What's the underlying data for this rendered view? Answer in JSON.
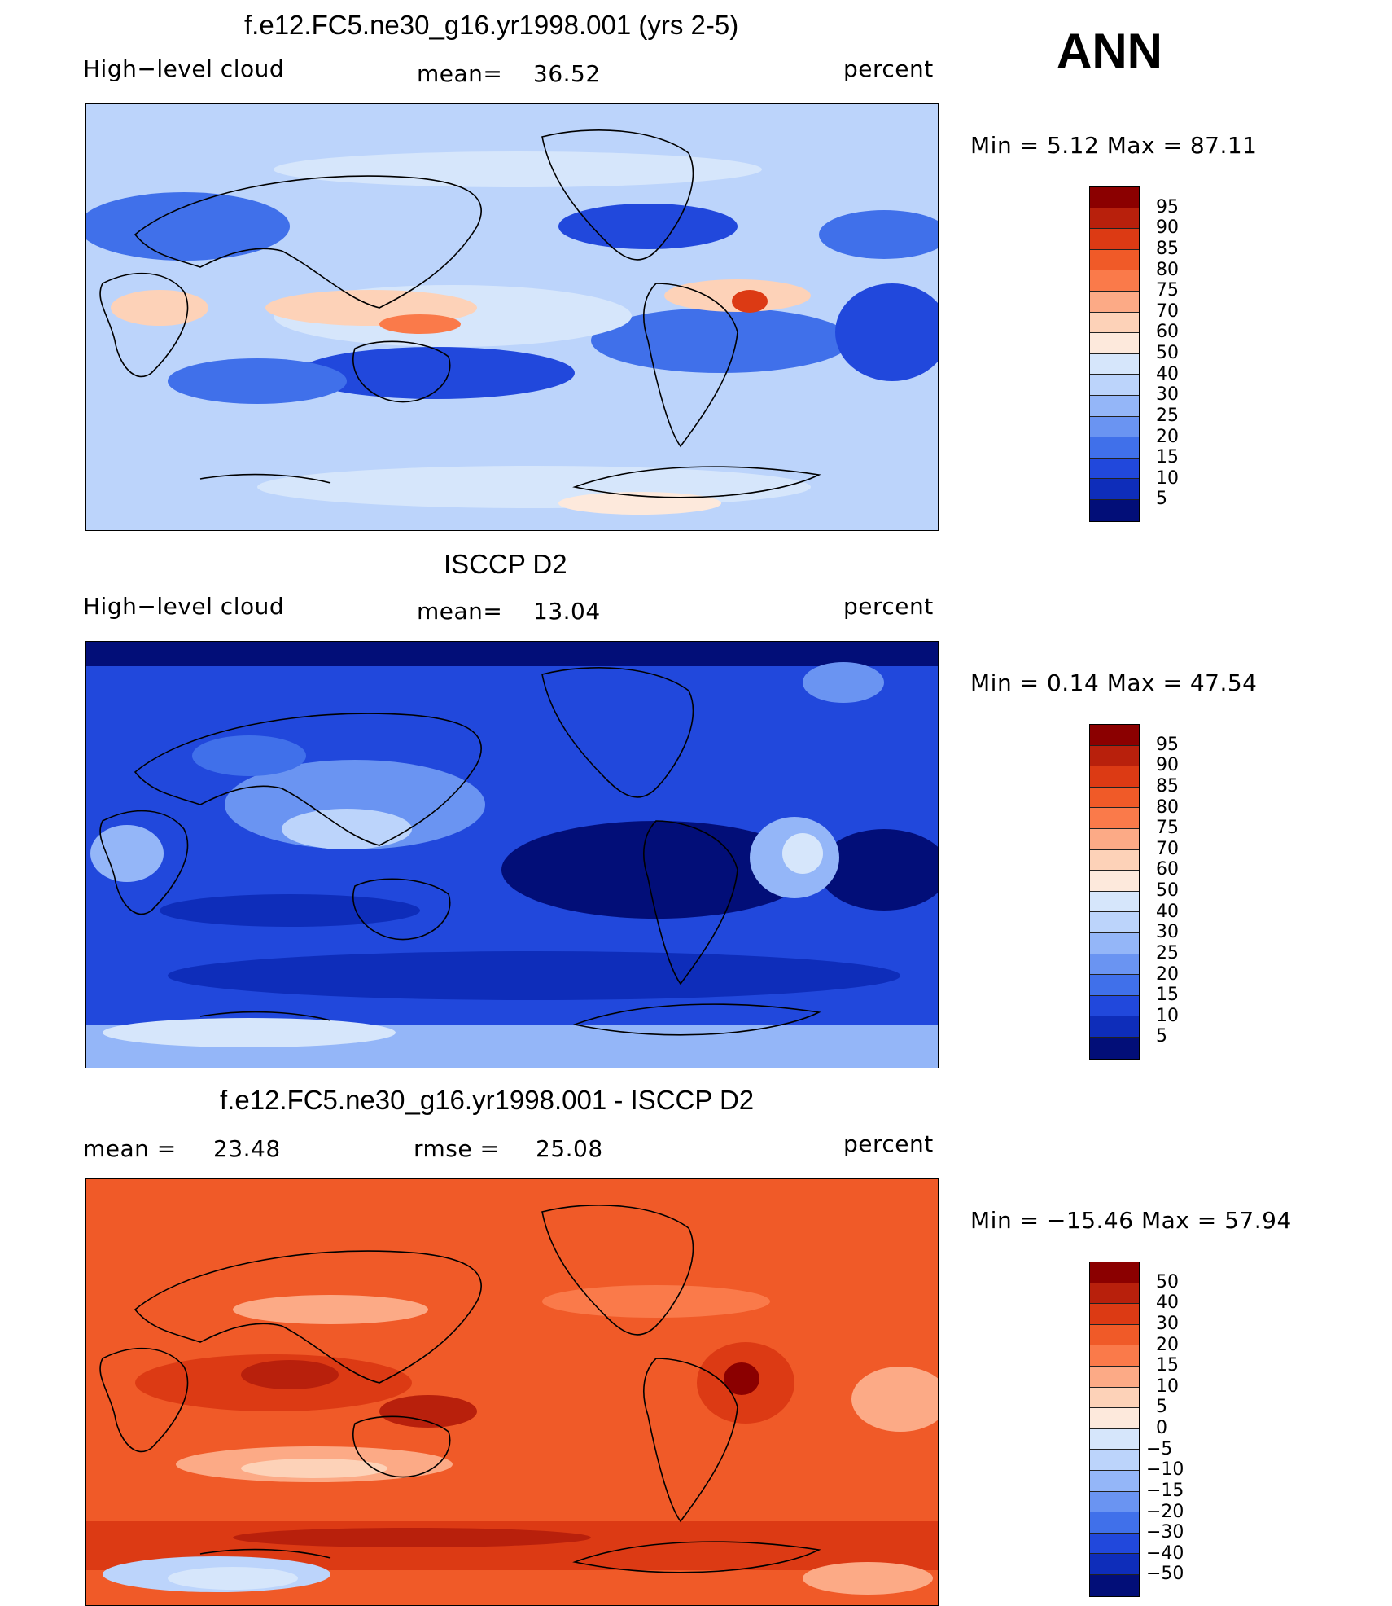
{
  "season": "ANN",
  "panels": [
    {
      "title": "f.e12.FC5.ne30_g16.yr1998.001 (yrs 2-5)",
      "left_label": "High−level cloud",
      "mean_label": "mean=",
      "mean_value": "36.52",
      "units": "percent",
      "minmax": "Min =    5.12 Max =   87.11",
      "colorbar_labels": [
        "95",
        "90",
        "85",
        "80",
        "75",
        "70",
        "60",
        "50",
        "40",
        "30",
        "25",
        "20",
        "15",
        "10",
        "5"
      ],
      "colorbar_colors": [
        "#8b0000",
        "#b8200c",
        "#dc3a14",
        "#f05a28",
        "#fa7a4a",
        "#fcaa86",
        "#fdd2b8",
        "#fde9dc",
        "#d6e6fb",
        "#bcd4fb",
        "#94b6f8",
        "#6a94f2",
        "#4070ea",
        "#2148dc",
        "#0e2dba",
        "#020e78"
      ]
    },
    {
      "title": "ISCCP D2",
      "left_label": "High−level cloud",
      "mean_label": "mean=",
      "mean_value": "13.04",
      "units": "percent",
      "minmax": "Min =    0.14 Max =   47.54",
      "colorbar_labels": [
        "95",
        "90",
        "85",
        "80",
        "75",
        "70",
        "60",
        "50",
        "40",
        "30",
        "25",
        "20",
        "15",
        "10",
        "5"
      ],
      "colorbar_colors": [
        "#8b0000",
        "#b8200c",
        "#dc3a14",
        "#f05a28",
        "#fa7a4a",
        "#fcaa86",
        "#fdd2b8",
        "#fde9dc",
        "#d6e6fb",
        "#bcd4fb",
        "#94b6f8",
        "#6a94f2",
        "#4070ea",
        "#2148dc",
        "#0e2dba",
        "#020e78"
      ]
    },
    {
      "title": "f.e12.FC5.ne30_g16.yr1998.001 - ISCCP D2",
      "left_label": "mean =",
      "left_value": "23.48",
      "mean_label": "rmse =",
      "mean_value": "25.08",
      "units": "percent",
      "minmax": "Min = −15.46 Max =   57.94",
      "colorbar_labels": [
        "50",
        "40",
        "30",
        "20",
        "15",
        "10",
        "5",
        "0",
        "−5",
        "−10",
        "−15",
        "−20",
        "−30",
        "−40",
        "−50"
      ],
      "colorbar_colors": [
        "#8b0000",
        "#b8200c",
        "#dc3a14",
        "#f05a28",
        "#fa7a4a",
        "#fcaa86",
        "#fdd2b8",
        "#fde9dc",
        "#d6e6fb",
        "#bcd4fb",
        "#94b6f8",
        "#6a94f2",
        "#4070ea",
        "#2148dc",
        "#0e2dba",
        "#020e78"
      ]
    }
  ]
}
